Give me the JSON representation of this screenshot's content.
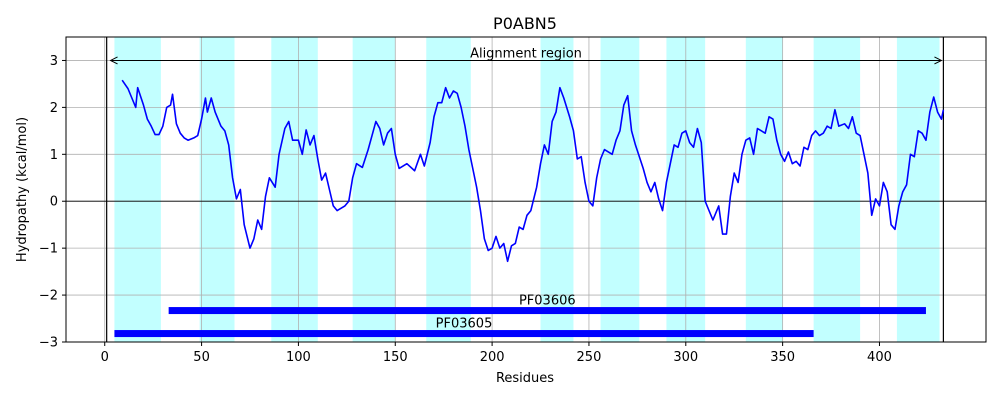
{
  "chart_data": {
    "type": "line",
    "title": "P0ABN5",
    "xlabel": "Residues",
    "ylabel": "Hydropathy (kcal/mol)",
    "xlim": [
      -20,
      455
    ],
    "ylim": [
      -3,
      3.5
    ],
    "xticks": [
      0,
      50,
      100,
      150,
      200,
      250,
      300,
      350,
      400
    ],
    "yticks": [
      -3,
      -2,
      -1,
      0,
      1,
      2,
      3
    ],
    "ytick_labels": [
      "−3",
      "−2",
      "−1",
      "0",
      "1",
      "2",
      "3"
    ],
    "grid": true,
    "colors": {
      "line": "#0000ff",
      "band": "#c2ffff",
      "domain_bar": "#0000ff",
      "axis": "#000000",
      "grid": "#b0b0b0"
    },
    "vertical_lines": [
      1,
      433
    ],
    "alignment_region": {
      "label": "Alignment region",
      "start": 3,
      "end": 432,
      "y": 3.0
    },
    "tm_segments": [
      [
        5,
        29
      ],
      [
        49,
        67
      ],
      [
        86,
        110
      ],
      [
        128,
        150
      ],
      [
        166,
        189
      ],
      [
        225,
        242
      ],
      [
        256,
        276
      ],
      [
        290,
        310
      ],
      [
        331,
        350
      ],
      [
        366,
        390
      ],
      [
        409,
        431
      ]
    ],
    "domains": [
      {
        "name": "PF03606",
        "start": 33,
        "end": 424,
        "y": -2.33
      },
      {
        "name": "PF03605",
        "start": 5,
        "end": 366,
        "y": -2.82
      }
    ],
    "series": [
      {
        "name": "Hydropathy",
        "points": [
          [
            9,
            2.58
          ],
          [
            12,
            2.4
          ],
          [
            14,
            2.2
          ],
          [
            16,
            2.0
          ],
          [
            17,
            2.42
          ],
          [
            20,
            2.05
          ],
          [
            22,
            1.75
          ],
          [
            24,
            1.6
          ],
          [
            26,
            1.42
          ],
          [
            28,
            1.42
          ],
          [
            30,
            1.6
          ],
          [
            32,
            2.0
          ],
          [
            34,
            2.05
          ],
          [
            35,
            2.28
          ],
          [
            37,
            1.65
          ],
          [
            39,
            1.45
          ],
          [
            41,
            1.35
          ],
          [
            43,
            1.3
          ],
          [
            46,
            1.35
          ],
          [
            48,
            1.4
          ],
          [
            50,
            1.75
          ],
          [
            52,
            2.2
          ],
          [
            53,
            1.9
          ],
          [
            55,
            2.2
          ],
          [
            57,
            1.9
          ],
          [
            60,
            1.6
          ],
          [
            62,
            1.5
          ],
          [
            64,
            1.2
          ],
          [
            66,
            0.5
          ],
          [
            68,
            0.05
          ],
          [
            70,
            0.25
          ],
          [
            72,
            -0.5
          ],
          [
            75,
            -1.0
          ],
          [
            77,
            -0.8
          ],
          [
            79,
            -0.4
          ],
          [
            81,
            -0.6
          ],
          [
            83,
            0.1
          ],
          [
            85,
            0.5
          ],
          [
            88,
            0.3
          ],
          [
            90,
            1.0
          ],
          [
            93,
            1.55
          ],
          [
            95,
            1.7
          ],
          [
            97,
            1.3
          ],
          [
            100,
            1.3
          ],
          [
            102,
            1.0
          ],
          [
            104,
            1.52
          ],
          [
            106,
            1.2
          ],
          [
            108,
            1.4
          ],
          [
            110,
            0.9
          ],
          [
            112,
            0.45
          ],
          [
            114,
            0.6
          ],
          [
            116,
            0.25
          ],
          [
            118,
            -0.1
          ],
          [
            120,
            -0.2
          ],
          [
            124,
            -0.1
          ],
          [
            126,
            0.0
          ],
          [
            128,
            0.5
          ],
          [
            130,
            0.8
          ],
          [
            133,
            0.72
          ],
          [
            136,
            1.1
          ],
          [
            138,
            1.4
          ],
          [
            140,
            1.7
          ],
          [
            142,
            1.55
          ],
          [
            144,
            1.2
          ],
          [
            146,
            1.45
          ],
          [
            148,
            1.55
          ],
          [
            150,
            1.0
          ],
          [
            152,
            0.7
          ],
          [
            156,
            0.8
          ],
          [
            160,
            0.65
          ],
          [
            163,
            1.0
          ],
          [
            165,
            0.75
          ],
          [
            168,
            1.25
          ],
          [
            170,
            1.8
          ],
          [
            172,
            2.1
          ],
          [
            174,
            2.1
          ],
          [
            176,
            2.42
          ],
          [
            178,
            2.2
          ],
          [
            180,
            2.35
          ],
          [
            182,
            2.3
          ],
          [
            184,
            2.0
          ],
          [
            186,
            1.6
          ],
          [
            188,
            1.1
          ],
          [
            190,
            0.7
          ],
          [
            192,
            0.3
          ],
          [
            194,
            -0.2
          ],
          [
            196,
            -0.8
          ],
          [
            198,
            -1.05
          ],
          [
            200,
            -1.0
          ],
          [
            202,
            -0.75
          ],
          [
            204,
            -1.0
          ],
          [
            206,
            -0.9
          ],
          [
            208,
            -1.28
          ],
          [
            210,
            -0.95
          ],
          [
            212,
            -0.9
          ],
          [
            214,
            -0.55
          ],
          [
            216,
            -0.6
          ],
          [
            218,
            -0.3
          ],
          [
            220,
            -0.2
          ],
          [
            223,
            0.3
          ],
          [
            225,
            0.8
          ],
          [
            227,
            1.2
          ],
          [
            229,
            1.0
          ],
          [
            231,
            1.7
          ],
          [
            233,
            1.9
          ],
          [
            235,
            2.42
          ],
          [
            237,
            2.2
          ],
          [
            240,
            1.8
          ],
          [
            242,
            1.5
          ],
          [
            244,
            0.9
          ],
          [
            246,
            0.95
          ],
          [
            248,
            0.4
          ],
          [
            250,
            0.0
          ],
          [
            252,
            -0.1
          ],
          [
            254,
            0.5
          ],
          [
            256,
            0.9
          ],
          [
            258,
            1.1
          ],
          [
            260,
            1.05
          ],
          [
            262,
            1.0
          ],
          [
            264,
            1.3
          ],
          [
            266,
            1.5
          ],
          [
            268,
            2.05
          ],
          [
            270,
            2.25
          ],
          [
            272,
            1.5
          ],
          [
            274,
            1.2
          ],
          [
            276,
            0.95
          ],
          [
            278,
            0.7
          ],
          [
            280,
            0.4
          ],
          [
            282,
            0.2
          ],
          [
            284,
            0.4
          ],
          [
            286,
            0.05
          ],
          [
            288,
            -0.2
          ],
          [
            290,
            0.4
          ],
          [
            292,
            0.8
          ],
          [
            294,
            1.2
          ],
          [
            296,
            1.15
          ],
          [
            298,
            1.45
          ],
          [
            300,
            1.5
          ],
          [
            302,
            1.25
          ],
          [
            304,
            1.15
          ],
          [
            306,
            1.55
          ],
          [
            308,
            1.25
          ],
          [
            310,
            0.0
          ],
          [
            312,
            -0.2
          ],
          [
            314,
            -0.4
          ],
          [
            317,
            -0.1
          ],
          [
            319,
            -0.7
          ],
          [
            321,
            -0.7
          ],
          [
            323,
            0.1
          ],
          [
            325,
            0.6
          ],
          [
            327,
            0.4
          ],
          [
            329,
            1.0
          ],
          [
            331,
            1.3
          ],
          [
            333,
            1.35
          ],
          [
            335,
            1.0
          ],
          [
            337,
            1.55
          ],
          [
            339,
            1.5
          ],
          [
            341,
            1.45
          ],
          [
            343,
            1.8
          ],
          [
            345,
            1.75
          ],
          [
            347,
            1.3
          ],
          [
            349,
            1.0
          ],
          [
            351,
            0.85
          ],
          [
            353,
            1.05
          ],
          [
            355,
            0.8
          ],
          [
            357,
            0.85
          ],
          [
            359,
            0.75
          ],
          [
            361,
            1.15
          ],
          [
            363,
            1.1
          ],
          [
            365,
            1.4
          ],
          [
            367,
            1.5
          ],
          [
            369,
            1.4
          ],
          [
            371,
            1.45
          ],
          [
            373,
            1.6
          ],
          [
            375,
            1.55
          ],
          [
            377,
            1.95
          ],
          [
            379,
            1.6
          ],
          [
            382,
            1.65
          ],
          [
            384,
            1.55
          ],
          [
            386,
            1.8
          ],
          [
            388,
            1.45
          ],
          [
            390,
            1.4
          ],
          [
            392,
            1.0
          ],
          [
            394,
            0.6
          ],
          [
            396,
            -0.3
          ],
          [
            398,
            0.05
          ],
          [
            400,
            -0.1
          ],
          [
            402,
            0.4
          ],
          [
            404,
            0.2
          ],
          [
            406,
            -0.5
          ],
          [
            408,
            -0.6
          ],
          [
            410,
            -0.1
          ],
          [
            412,
            0.2
          ],
          [
            414,
            0.35
          ],
          [
            416,
            1.0
          ],
          [
            418,
            0.95
          ],
          [
            420,
            1.5
          ],
          [
            422,
            1.45
          ],
          [
            424,
            1.3
          ],
          [
            426,
            1.9
          ],
          [
            428,
            2.22
          ],
          [
            430,
            1.9
          ],
          [
            432,
            1.75
          ],
          [
            433,
            1.95
          ]
        ]
      }
    ]
  }
}
